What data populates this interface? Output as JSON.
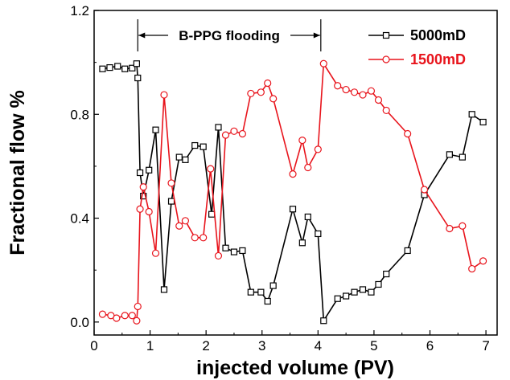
{
  "chart_data": {
    "type": "line",
    "xlabel": "injected volume (PV)",
    "ylabel": "Fractional flow %",
    "xlim": [
      0,
      7.2
    ],
    "ylim": [
      -0.05,
      1.2
    ],
    "x_ticks": [
      0,
      1,
      2,
      3,
      4,
      5,
      6,
      7
    ],
    "y_ticks": [
      0.0,
      0.4,
      0.8,
      1.2
    ],
    "x_tick_labels": [
      "0",
      "1",
      "2",
      "3",
      "4",
      "5",
      "6",
      "7"
    ],
    "y_tick_labels": [
      "0.0",
      "0.4",
      "0.8",
      "1.2"
    ],
    "legend_position": "top-right",
    "annotation": {
      "text": "B-PPG flooding",
      "x_start": 0.78,
      "x_end": 4.05
    },
    "series": [
      {
        "name": "5000mD",
        "color": "#000000",
        "marker": "square",
        "points": [
          [
            0.15,
            0.975
          ],
          [
            0.28,
            0.98
          ],
          [
            0.42,
            0.985
          ],
          [
            0.55,
            0.975
          ],
          [
            0.68,
            0.978
          ],
          [
            0.76,
            0.995
          ],
          [
            0.78,
            0.94
          ],
          [
            0.82,
            0.575
          ],
          [
            0.88,
            0.485
          ],
          [
            0.98,
            0.585
          ],
          [
            1.1,
            0.74
          ],
          [
            1.25,
            0.125
          ],
          [
            1.38,
            0.465
          ],
          [
            1.52,
            0.635
          ],
          [
            1.63,
            0.625
          ],
          [
            1.8,
            0.68
          ],
          [
            1.95,
            0.675
          ],
          [
            2.1,
            0.415
          ],
          [
            2.22,
            0.75
          ],
          [
            2.35,
            0.285
          ],
          [
            2.5,
            0.27
          ],
          [
            2.65,
            0.275
          ],
          [
            2.8,
            0.115
          ],
          [
            2.98,
            0.115
          ],
          [
            3.1,
            0.08
          ],
          [
            3.2,
            0.14
          ],
          [
            3.55,
            0.435
          ],
          [
            3.72,
            0.305
          ],
          [
            3.82,
            0.405
          ],
          [
            4.0,
            0.34
          ],
          [
            4.1,
            0.005
          ],
          [
            4.35,
            0.09
          ],
          [
            4.5,
            0.1
          ],
          [
            4.65,
            0.115
          ],
          [
            4.8,
            0.125
          ],
          [
            4.95,
            0.115
          ],
          [
            5.08,
            0.145
          ],
          [
            5.22,
            0.185
          ],
          [
            5.6,
            0.275
          ],
          [
            5.9,
            0.49
          ],
          [
            6.35,
            0.645
          ],
          [
            6.58,
            0.635
          ],
          [
            6.75,
            0.8
          ],
          [
            6.95,
            0.77
          ]
        ]
      },
      {
        "name": "1500mD",
        "color": "#e8141c",
        "marker": "circle",
        "points": [
          [
            0.15,
            0.03
          ],
          [
            0.3,
            0.025
          ],
          [
            0.4,
            0.015
          ],
          [
            0.55,
            0.025
          ],
          [
            0.68,
            0.025
          ],
          [
            0.76,
            0.005
          ],
          [
            0.78,
            0.06
          ],
          [
            0.82,
            0.435
          ],
          [
            0.88,
            0.52
          ],
          [
            0.98,
            0.425
          ],
          [
            1.1,
            0.265
          ],
          [
            1.25,
            0.875
          ],
          [
            1.38,
            0.535
          ],
          [
            1.52,
            0.37
          ],
          [
            1.63,
            0.39
          ],
          [
            1.8,
            0.325
          ],
          [
            1.95,
            0.325
          ],
          [
            2.08,
            0.59
          ],
          [
            2.22,
            0.255
          ],
          [
            2.35,
            0.72
          ],
          [
            2.5,
            0.735
          ],
          [
            2.65,
            0.725
          ],
          [
            2.8,
            0.88
          ],
          [
            2.98,
            0.885
          ],
          [
            3.1,
            0.92
          ],
          [
            3.2,
            0.86
          ],
          [
            3.55,
            0.57
          ],
          [
            3.72,
            0.7
          ],
          [
            3.82,
            0.595
          ],
          [
            4.0,
            0.665
          ],
          [
            4.1,
            0.995
          ],
          [
            4.35,
            0.91
          ],
          [
            4.5,
            0.895
          ],
          [
            4.65,
            0.885
          ],
          [
            4.8,
            0.875
          ],
          [
            4.95,
            0.89
          ],
          [
            5.08,
            0.855
          ],
          [
            5.22,
            0.815
          ],
          [
            5.6,
            0.725
          ],
          [
            5.9,
            0.51
          ],
          [
            6.35,
            0.36
          ],
          [
            6.58,
            0.37
          ],
          [
            6.75,
            0.205
          ],
          [
            6.95,
            0.235
          ]
        ]
      }
    ]
  }
}
